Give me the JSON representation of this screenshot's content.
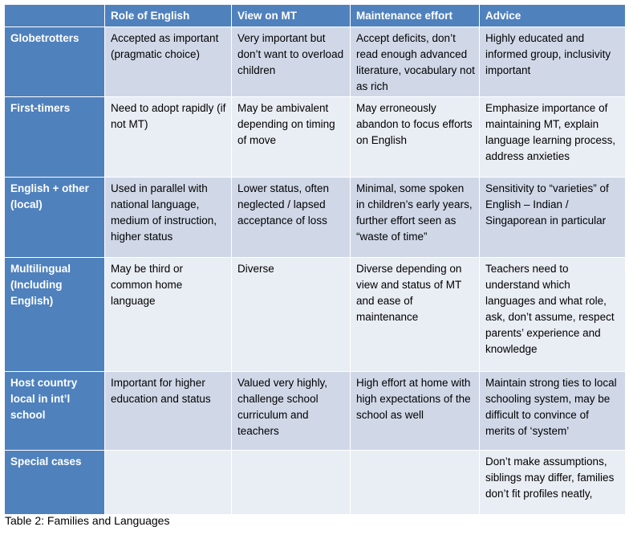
{
  "table": {
    "columns": [
      "Role of English",
      "View on MT",
      "Maintenance effort",
      "Advice"
    ],
    "rows": [
      {
        "label": "Globetrotters",
        "cells": [
          "Accepted as important (pragmatic choice)",
          "Very important but don’t want to overload children",
          "Accept deficits, don’t read enough advanced literature, vocabulary not as rich",
          "Highly educated and informed group, inclusivity important"
        ]
      },
      {
        "label": "First-timers",
        "cells": [
          "Need to adopt rapidly (if not MT)",
          "May be ambivalent depending on timing of move",
          "May erroneously abandon to focus efforts on English",
          "Emphasize importance of maintaining MT, explain language learning process, address anxieties"
        ]
      },
      {
        "label": "English + other (local)",
        "cells": [
          "Used in parallel with national language, medium of instruction, higher status",
          "Lower status, often neglected / lapsed acceptance of loss",
          "Minimal, some spoken in children’s early years, further effort seen as “waste of time”",
          "Sensitivity to “varieties” of English – Indian / Singaporean in particular"
        ]
      },
      {
        "label": "Multilingual (Including English)",
        "cells": [
          "May be third or common home language",
          "Diverse",
          "Diverse depending on view and status of MT and ease of maintenance",
          "Teachers need to understand which languages and what role, ask, don’t assume, respect parents’ experience and knowledge"
        ]
      },
      {
        "label": "Host country local in int’l school",
        "cells": [
          "Important for higher education and status",
          "Valued very highly, challenge school curriculum and teachers",
          "High effort at home with high expectations of the school as well",
          "Maintain strong ties to local schooling system, may be difficult to convince of merits of ‘system’"
        ]
      },
      {
        "label": "Special cases",
        "cells": [
          null,
          null,
          null,
          "Don’t make assumptions, siblings may differ, families don’t fit profiles neatly,"
        ]
      }
    ]
  },
  "caption": "Table 2: Families and Languages"
}
